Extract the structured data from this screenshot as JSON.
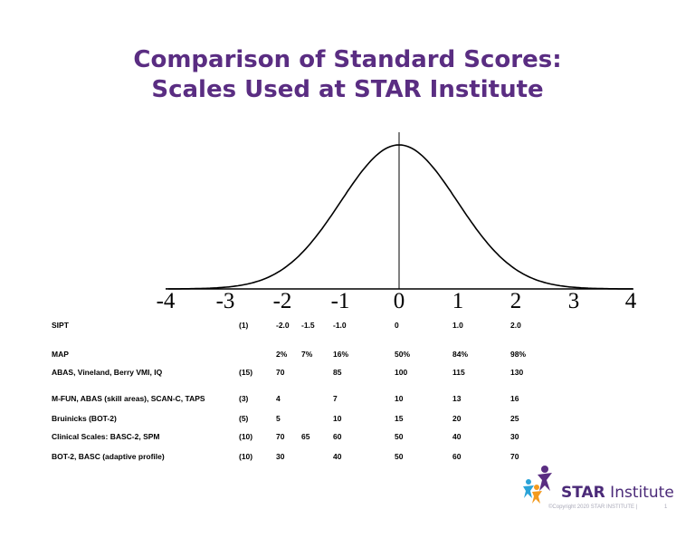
{
  "title": {
    "line1": "Comparison of Standard Scores:",
    "line2": "Scales Used at STAR Institute"
  },
  "axis": {
    "ticks": [
      "-4",
      "-3",
      "-2",
      "-1",
      "0",
      "1",
      "2",
      "3",
      "4"
    ]
  },
  "scales": [
    {
      "name": "SIPT",
      "count": "(1)",
      "values": [
        "-2.0",
        "-1.5",
        "-1.0",
        "0",
        "1.0",
        "2.0"
      ]
    },
    {
      "name": "MAP",
      "count": "",
      "values": [
        "2%",
        "7%",
        "16%",
        "50%",
        "84%",
        "98%"
      ]
    },
    {
      "name": "ABAS, Vineland, Berry VMI, IQ",
      "count": "(15)",
      "values": [
        "70",
        "",
        "85",
        "100",
        "115",
        "130"
      ]
    },
    {
      "name": "M-FUN, ABAS (skill areas), SCAN-C, TAPS",
      "count": "(3)",
      "values": [
        "4",
        "",
        "7",
        "10",
        "13",
        "16"
      ]
    },
    {
      "name": "Bruinicks (BOT-2)",
      "count": "(5)",
      "values": [
        "5",
        "",
        "10",
        "15",
        "20",
        "25"
      ]
    },
    {
      "name": "Clinical Scales: BASC-2, SPM",
      "count": "(10)",
      "values": [
        "70",
        "65",
        "60",
        "50",
        "40",
        "30"
      ]
    },
    {
      "name": "BOT-2, BASC (adaptive profile)",
      "count": "(10)",
      "values": [
        "30",
        "",
        "40",
        "50",
        "60",
        "70"
      ]
    }
  ],
  "logo": {
    "brand": "STAR",
    "suffix": " Institute",
    "copyright": "©Copyright 2020 STAR INSTITUTE |",
    "page": "1"
  }
}
